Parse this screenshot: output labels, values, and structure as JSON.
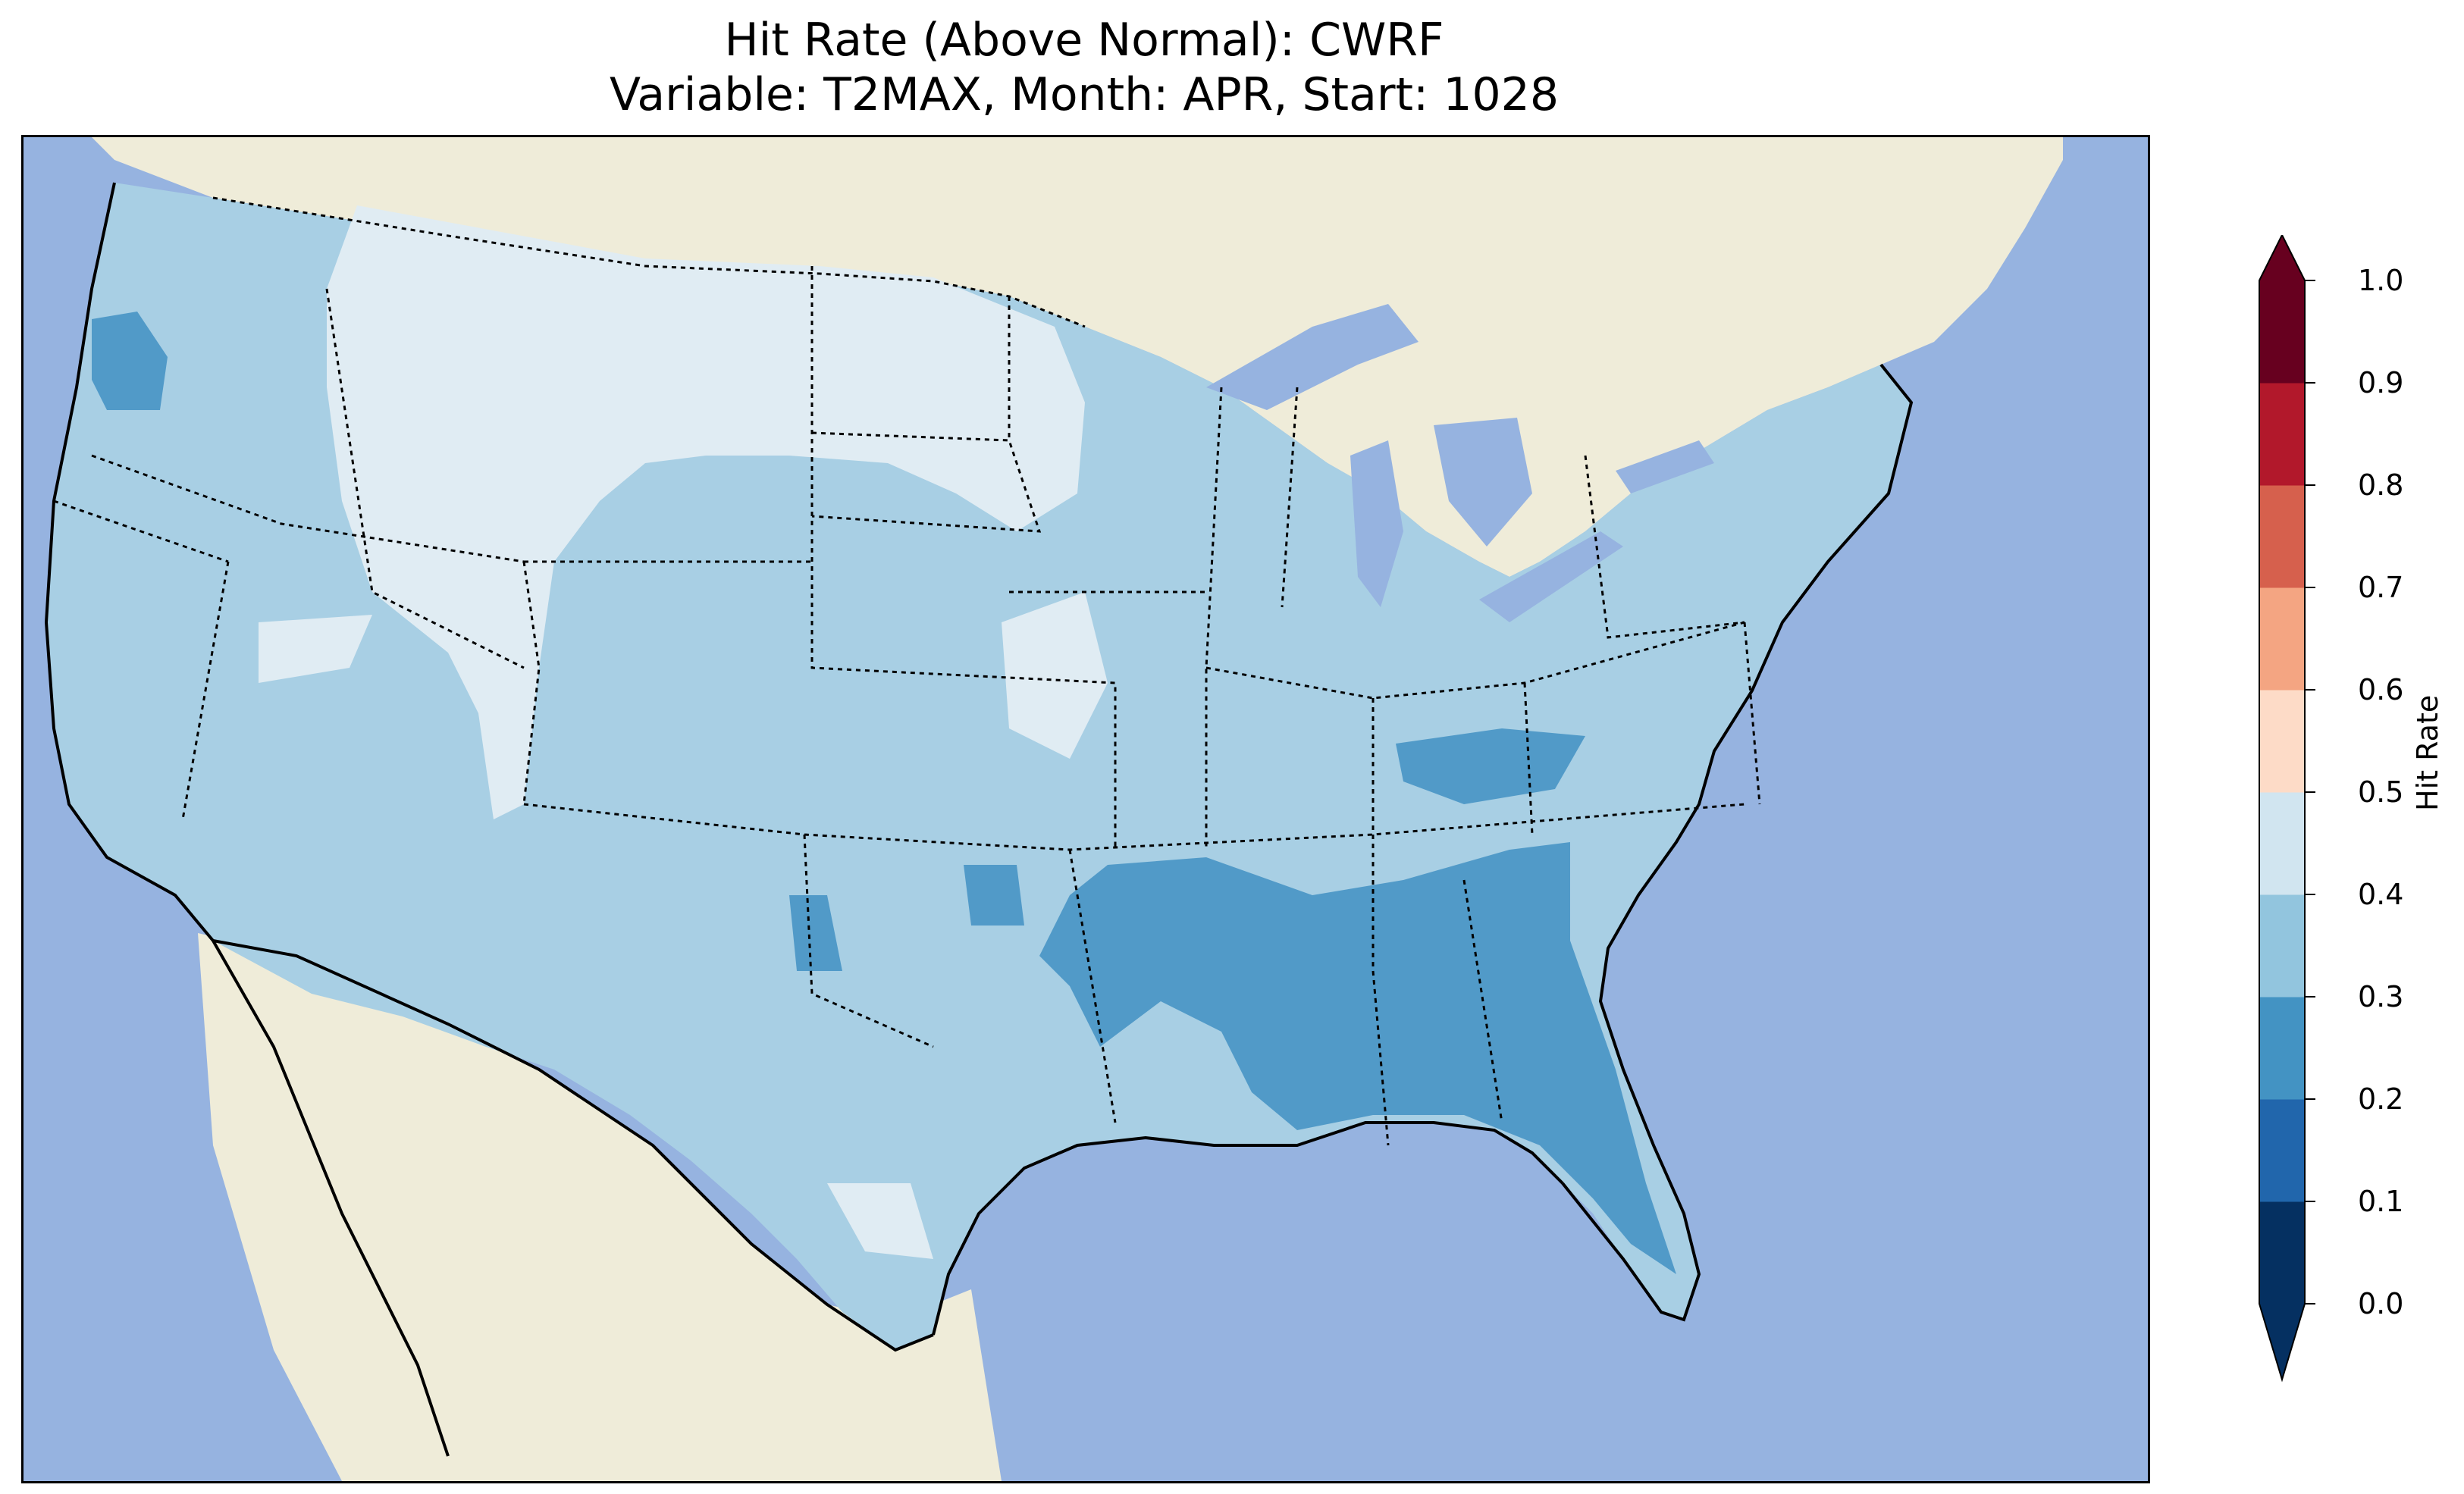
{
  "title": {
    "line1": "Hit Rate (Above Normal): CWRF",
    "line2": "Variable: T2MAX, Month: APR, Start: 1028"
  },
  "colorbar": {
    "label": "Hit Rate",
    "ticks": [
      "0.0",
      "0.1",
      "0.2",
      "0.3",
      "0.4",
      "0.5",
      "0.6",
      "0.7",
      "0.8",
      "0.9",
      "1.0"
    ],
    "colors": [
      "#053061",
      "#2166ac",
      "#4393c3",
      "#92c5de",
      "#d1e5f0",
      "#fddbc7",
      "#f4a582",
      "#d6604d",
      "#b2182b",
      "#67001f"
    ],
    "under_color": "#053061",
    "over_color": "#67001f",
    "extend": "both"
  },
  "map": {
    "ocean_color": "#96b3e0",
    "land_color": "#efecd9",
    "lake_color": "#96b3e0",
    "dominant_bin": "0.3-0.4",
    "bin_colors": {
      "0.2-0.3": "#519ac8",
      "0.3-0.4": "#a8cfe4",
      "0.4-0.5": "#e0ecf3"
    }
  },
  "chart_data": {
    "type": "heatmap",
    "title": "Hit Rate (Above Normal): CWRF\nVariable: T2MAX, Month: APR, Start: 1028",
    "colorbar_label": "Hit Rate",
    "value_range": [
      0.0,
      1.0
    ],
    "bins": [
      0.0,
      0.1,
      0.2,
      0.3,
      0.4,
      0.5,
      0.6,
      0.7,
      0.8,
      0.9,
      1.0
    ],
    "regions": [
      {
        "region": "Most of CONUS",
        "range": "0.3-0.4"
      },
      {
        "region": "Northern Rockies / Northern Plains",
        "range": "0.4-0.5"
      },
      {
        "region": "Southeast (AR, MS, AL, GA, FL)",
        "range": "0.2-0.3"
      },
      {
        "region": "Ohio Valley (KY)",
        "range": "0.2-0.3"
      },
      {
        "region": "Pacific Northwest coast",
        "range": "0.2-0.3"
      }
    ]
  }
}
